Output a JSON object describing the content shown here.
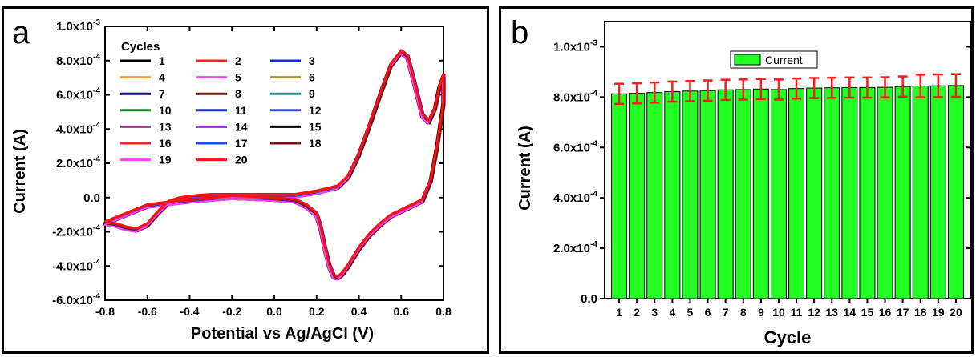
{
  "panels": {
    "a": {
      "letter": "a"
    },
    "b": {
      "letter": "b"
    }
  },
  "chart_data": [
    {
      "type": "line",
      "panel": "a",
      "xlabel": "Potential vs Ag/AgCl (V)",
      "ylabel": "Current (A)",
      "xlim": [
        -0.8,
        0.8
      ],
      "ylim": [
        -0.0006,
        0.001
      ],
      "x_ticks": [
        "-0.8",
        "-0.6",
        "-0.4",
        "-0.2",
        "0.0",
        "0.2",
        "0.4",
        "0.6",
        "0.8"
      ],
      "y_ticks": [
        {
          "m": "-6.0x10",
          "e": "-4",
          "plain": ""
        },
        {
          "m": "-4.0x10",
          "e": "-4",
          "plain": ""
        },
        {
          "m": "-2.0x10",
          "e": "-4",
          "plain": ""
        },
        {
          "m": "",
          "e": "",
          "plain": "0.0"
        },
        {
          "m": "2.0x10",
          "e": "-4",
          "plain": ""
        },
        {
          "m": "4.0x10",
          "e": "-4",
          "plain": ""
        },
        {
          "m": "6.0x10",
          "e": "-4",
          "plain": ""
        },
        {
          "m": "8.0x10",
          "e": "-4",
          "plain": ""
        },
        {
          "m": "1.0x10",
          "e": "-3",
          "plain": ""
        }
      ],
      "legend_title": "Cycles",
      "legend_placement": "top-left",
      "series": [
        {
          "name": "1",
          "color": "#000000"
        },
        {
          "name": "2",
          "color": "#ff2020"
        },
        {
          "name": "3",
          "color": "#1030e0"
        },
        {
          "name": "4",
          "color": "#f59a30"
        },
        {
          "name": "5",
          "color": "#ff40ff"
        },
        {
          "name": "6",
          "color": "#a09a20"
        },
        {
          "name": "7",
          "color": "#101070"
        },
        {
          "name": "8",
          "color": "#702010"
        },
        {
          "name": "9",
          "color": "#309090"
        },
        {
          "name": "10",
          "color": "#208030"
        },
        {
          "name": "11",
          "color": "#2030c0"
        },
        {
          "name": "12",
          "color": "#4050d0"
        },
        {
          "name": "13",
          "color": "#8a4080"
        },
        {
          "name": "14",
          "color": "#8a30e0"
        },
        {
          "name": "15",
          "color": "#000000"
        },
        {
          "name": "16",
          "color": "#ff2020"
        },
        {
          "name": "17",
          "color": "#1050ff"
        },
        {
          "name": "18",
          "color": "#701010"
        },
        {
          "name": "19",
          "color": "#ff40ff"
        },
        {
          "name": "20",
          "color": "#ff1010"
        }
      ],
      "curve": [
        [
          -0.8,
          -0.00015
        ],
        [
          -0.75,
          -0.00016
        ],
        [
          -0.7,
          -0.00018
        ],
        [
          -0.65,
          -0.00019
        ],
        [
          -0.6,
          -0.00016
        ],
        [
          -0.55,
          -9e-05
        ],
        [
          -0.5,
          -3e-05
        ],
        [
          -0.45,
          -1e-05
        ],
        [
          -0.4,
          0.0
        ],
        [
          -0.3,
          1e-05
        ],
        [
          -0.2,
          1e-05
        ],
        [
          -0.1,
          1e-05
        ],
        [
          0.0,
          1e-05
        ],
        [
          0.1,
          1e-05
        ],
        [
          0.2,
          3e-05
        ],
        [
          0.3,
          6e-05
        ],
        [
          0.35,
          0.00012
        ],
        [
          0.4,
          0.00025
        ],
        [
          0.45,
          0.00042
        ],
        [
          0.5,
          0.0006
        ],
        [
          0.55,
          0.00077
        ],
        [
          0.6,
          0.00085
        ],
        [
          0.63,
          0.00082
        ],
        [
          0.66,
          0.00068
        ],
        [
          0.7,
          0.00048
        ],
        [
          0.73,
          0.00044
        ],
        [
          0.76,
          0.00052
        ],
        [
          0.78,
          0.00064
        ],
        [
          0.8,
          0.00071
        ],
        [
          0.8,
          0.00055
        ],
        [
          0.77,
          0.0003
        ],
        [
          0.74,
          0.0001
        ],
        [
          0.7,
          -2e-05
        ],
        [
          0.65,
          -5e-05
        ],
        [
          0.6,
          -8e-05
        ],
        [
          0.55,
          -0.00011
        ],
        [
          0.5,
          -0.00016
        ],
        [
          0.45,
          -0.00022
        ],
        [
          0.4,
          -0.0003
        ],
        [
          0.35,
          -0.0004
        ],
        [
          0.32,
          -0.00045
        ],
        [
          0.3,
          -0.00047
        ],
        [
          0.28,
          -0.00046
        ],
        [
          0.26,
          -0.0004
        ],
        [
          0.24,
          -0.0003
        ],
        [
          0.22,
          -0.00018
        ],
        [
          0.2,
          -0.0001
        ],
        [
          0.15,
          -5e-05
        ],
        [
          0.1,
          -2e-05
        ],
        [
          0.0,
          -1e-05
        ],
        [
          -0.2,
          0.0
        ],
        [
          -0.4,
          -2e-05
        ],
        [
          -0.6,
          -5e-05
        ],
        [
          -0.7,
          -0.0001
        ],
        [
          -0.8,
          -0.00015
        ]
      ]
    },
    {
      "type": "bar",
      "panel": "b",
      "xlabel": "Cycle",
      "ylabel": "Current (A)",
      "ylim": [
        0,
        0.0011
      ],
      "y_ticks": [
        {
          "v": 0.0,
          "m": "",
          "e": "",
          "plain": "0.0"
        },
        {
          "v": 0.0002,
          "m": "2.0x10",
          "e": "-4",
          "plain": ""
        },
        {
          "v": 0.0004,
          "m": "4.0x10",
          "e": "-4",
          "plain": ""
        },
        {
          "v": 0.0006,
          "m": "6.0x10",
          "e": "-4",
          "plain": ""
        },
        {
          "v": 0.0008,
          "m": "8.0x10",
          "e": "-4",
          "plain": ""
        },
        {
          "v": 0.001,
          "m": "1.0x10",
          "e": "-3",
          "plain": ""
        }
      ],
      "categories": [
        "1",
        "2",
        "3",
        "4",
        "5",
        "6",
        "7",
        "8",
        "9",
        "10",
        "11",
        "12",
        "13",
        "14",
        "15",
        "16",
        "17",
        "18",
        "19",
        "20"
      ],
      "series": [
        {
          "name": "Current",
          "color": "#22ff22",
          "values": [
            0.000813,
            0.000815,
            0.000818,
            0.000822,
            0.000824,
            0.000826,
            0.000829,
            0.00083,
            0.000832,
            0.00083,
            0.000834,
            0.000836,
            0.000837,
            0.000838,
            0.000838,
            0.000839,
            0.000842,
            0.000844,
            0.000845,
            0.000846
          ],
          "errors": [
            4e-05,
            4e-05,
            4e-05,
            4e-05,
            4e-05,
            4e-05,
            4e-05,
            4e-05,
            4e-05,
            4e-05,
            4e-05,
            4e-05,
            4e-05,
            4e-05,
            4e-05,
            4e-05,
            4e-05,
            4.5e-05,
            4.5e-05,
            4.5e-05
          ]
        }
      ],
      "error_color": "#ff1a1a",
      "legend_placement": "top-center"
    }
  ]
}
